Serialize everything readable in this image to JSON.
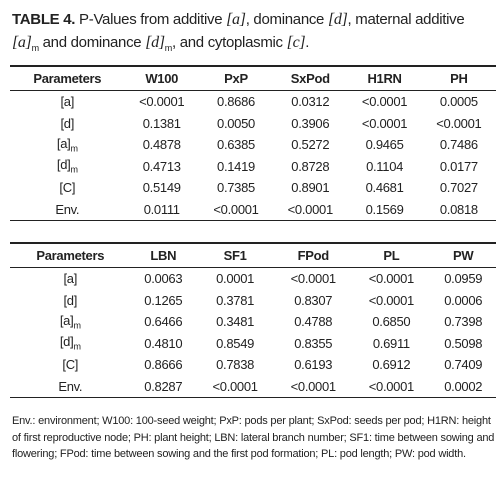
{
  "caption": [
    "TABLE 4.",
    "P-Values from additive",
    "[a]",
    ", dominance",
    "[d]",
    ", maternal additive",
    "[a]",
    "m",
    "and dominance",
    "[d]",
    "m",
    ", and cytoplasmic",
    "[c]",
    "."
  ],
  "tables": [
    {
      "headers": [
        "Parameters",
        "W100",
        "PxP",
        "SxPod",
        "H1RN",
        "PH"
      ],
      "rows": [
        [
          {
            "base": "[a]"
          },
          "<0.0001",
          "0.8686",
          "0.0312",
          "<0.0001",
          "0.0005"
        ],
        [
          {
            "base": "[d]"
          },
          "0.1381",
          "0.0050",
          "0.3906",
          "<0.0001",
          "<0.0001"
        ],
        [
          {
            "base": "[a]",
            "sub": "m"
          },
          "0.4878",
          "0.6385",
          "0.5272",
          "0.9465",
          "0.7486"
        ],
        [
          {
            "base": "[d]",
            "sub": "m"
          },
          "0.4713",
          "0.1419",
          "0.8728",
          "0.1104",
          "0.0177"
        ],
        [
          {
            "base": "[C]"
          },
          "0.5149",
          "0.7385",
          "0.8901",
          "0.4681",
          "0.7027"
        ],
        [
          {
            "base": "Env."
          },
          "0.0111",
          "<0.0001",
          "<0.0001",
          "0.1569",
          "0.0818"
        ]
      ]
    },
    {
      "headers": [
        "Parameters",
        "LBN",
        "SF1",
        "FPod",
        "PL",
        "PW"
      ],
      "rows": [
        [
          {
            "base": "[a]"
          },
          "0.0063",
          "0.0001",
          "<0.0001",
          "<0.0001",
          "0.0959"
        ],
        [
          {
            "base": "[d]"
          },
          "0.1265",
          "0.3781",
          "0.8307",
          "<0.0001",
          "0.0006"
        ],
        [
          {
            "base": "[a]",
            "sub": "m"
          },
          "0.6466",
          "0.3481",
          "0.4788",
          "0.6850",
          "0.7398"
        ],
        [
          {
            "base": "[d]",
            "sub": "m"
          },
          "0.4810",
          "0.8549",
          "0.8355",
          "0.6911",
          "0.5098"
        ],
        [
          {
            "base": "[C]"
          },
          "0.8666",
          "0.7838",
          "0.6193",
          "0.6912",
          "0.7409"
        ],
        [
          {
            "base": "Env."
          },
          "0.8287",
          "<0.0001",
          "<0.0001",
          "<0.0001",
          "0.0002"
        ]
      ]
    }
  ],
  "footnote": "Env.: environment; W100: 100-seed weight; PxP: pods per plant; SxPod: seeds per pod; H1RN: height of first reproductive node; PH: plant height; LBN: lateral branch number; SF1: time between sowing and flowering; FPod: time between sowing and the first pod formation; PL: pod length; PW: pod width."
}
